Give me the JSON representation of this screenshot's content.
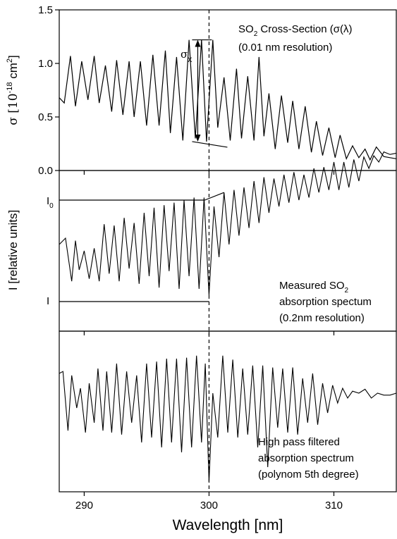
{
  "chart_data": [
    {
      "type": "line",
      "panel": "top",
      "ylabel_main": "σ [10",
      "ylabel_exp": "-18",
      "ylabel_unit": " cm",
      "ylabel_unit_exp": "2",
      "ylabel_close": "]",
      "ylim": [
        0.0,
        1.5
      ],
      "yticks": [
        "0.0",
        "0.5",
        "1.0",
        "1.5"
      ],
      "ytick_values": [
        0.0,
        0.5,
        1.0,
        1.5
      ],
      "xlim": [
        288,
        315
      ],
      "annotation_title_main": "SO",
      "annotation_title_sub": "2",
      "annotation_title_rest": " Cross-Section (σ(λ)",
      "annotation_resolution": "(0.01 nm resolution)",
      "sigma_x_symbol": "σ",
      "sigma_x_sub": "x",
      "sigma_x_wavelength": 300,
      "sigma_x_top": 1.22,
      "sigma_x_bottom": 0.27,
      "series": [
        {
          "x": [
            288.0,
            288.4,
            288.9,
            289.3,
            289.8,
            290.3,
            290.8,
            291.2,
            291.7,
            292.2,
            292.6,
            293.1,
            293.6,
            294.0,
            294.5,
            295.0,
            295.5,
            296.0,
            296.5,
            296.9,
            297.4,
            297.9,
            298.4,
            298.9,
            299.4,
            299.8,
            300.3,
            300.7,
            301.2,
            301.7,
            302.2,
            302.6,
            303.1,
            303.6,
            304.0,
            304.4,
            304.8,
            305.3,
            305.8,
            306.3,
            306.7,
            307.2,
            307.7,
            308.2,
            308.6,
            309.1,
            309.6,
            310.1,
            310.5,
            311.0,
            311.5,
            312.0,
            312.5,
            312.9,
            313.4,
            314.0,
            314.5,
            315.0
          ],
          "values": [
            0.68,
            0.63,
            1.07,
            0.6,
            1.02,
            0.66,
            1.07,
            0.63,
            0.98,
            0.55,
            1.03,
            0.52,
            1.02,
            0.5,
            1.02,
            0.42,
            1.08,
            0.42,
            1.12,
            0.35,
            1.06,
            0.28,
            1.22,
            0.3,
            1.22,
            0.27,
            1.22,
            0.4,
            0.87,
            0.28,
            0.95,
            0.3,
            0.88,
            0.28,
            1.06,
            0.32,
            0.72,
            0.2,
            0.7,
            0.26,
            0.65,
            0.2,
            0.6,
            0.17,
            0.46,
            0.14,
            0.4,
            0.12,
            0.33,
            0.11,
            0.23,
            0.12,
            0.2,
            0.1,
            0.22,
            0.13,
            0.12,
            0.11
          ]
        }
      ]
    },
    {
      "type": "line",
      "panel": "middle",
      "ylabel": "I [relative units]",
      "ytick_I0_main": "I",
      "ytick_I0_sub": "0",
      "ytick_I": "I",
      "I0_level": 0.8,
      "I_level": 0.0,
      "annotation_line1_main": "Measured SO",
      "annotation_line1_sub": "2",
      "annotation_line2": "absorption spectum",
      "annotation_line3": "(0.2nm resolution)",
      "series": [
        {
          "x": [
            288.0,
            288.5,
            289.0,
            289.3,
            289.6,
            290.0,
            290.4,
            290.8,
            291.2,
            291.6,
            292.0,
            292.4,
            292.8,
            293.2,
            293.6,
            294.0,
            294.4,
            294.8,
            295.2,
            295.6,
            296.0,
            296.4,
            296.8,
            297.2,
            297.6,
            298.0,
            298.4,
            298.8,
            299.2,
            299.6,
            300.0,
            300.4,
            300.8,
            301.2,
            301.6,
            302.0,
            302.4,
            302.8,
            303.2,
            303.6,
            304.0,
            304.4,
            304.8,
            305.2,
            305.6,
            306.0,
            306.4,
            306.8,
            307.2,
            307.6,
            308.0,
            308.4,
            308.8,
            309.2,
            309.6,
            310.0,
            310.4,
            310.8,
            311.2,
            311.6,
            312.0,
            312.4,
            312.8,
            313.2,
            313.6,
            314.0,
            314.5,
            315.0
          ],
          "values": [
            0.45,
            0.5,
            0.16,
            0.48,
            0.25,
            0.4,
            0.18,
            0.42,
            0.16,
            0.61,
            0.22,
            0.6,
            0.16,
            0.66,
            0.26,
            0.62,
            0.14,
            0.7,
            0.2,
            0.74,
            0.11,
            0.76,
            0.24,
            0.78,
            0.1,
            0.8,
            0.2,
            0.82,
            0.1,
            0.82,
            0.05,
            0.75,
            0.35,
            0.86,
            0.45,
            0.88,
            0.52,
            0.9,
            0.58,
            0.95,
            0.62,
            0.98,
            0.7,
            0.97,
            0.75,
            1.0,
            0.78,
            1.02,
            0.8,
            1.0,
            0.82,
            1.05,
            0.86,
            1.06,
            0.88,
            1.1,
            0.88,
            1.1,
            0.9,
            1.12,
            0.95,
            1.14,
            1.05,
            1.15,
            1.1,
            1.18,
            1.16,
            1.17
          ]
        }
      ]
    },
    {
      "type": "line",
      "panel": "bottom",
      "annotation_line1": "High pass filtered",
      "annotation_line2": "absorption spectrum",
      "annotation_line3": "(polynom 5th degree)",
      "series": [
        {
          "x": [
            288.0,
            288.3,
            288.7,
            289.0,
            289.4,
            289.7,
            290.1,
            290.4,
            290.8,
            291.1,
            291.5,
            291.8,
            292.2,
            292.6,
            293.0,
            293.4,
            293.8,
            294.2,
            294.6,
            295.0,
            295.4,
            295.8,
            296.2,
            296.6,
            297.0,
            297.4,
            297.8,
            298.2,
            298.6,
            299.0,
            299.4,
            299.7,
            300.0,
            300.3,
            300.7,
            301.1,
            301.5,
            301.9,
            302.3,
            302.7,
            303.1,
            303.5,
            303.9,
            304.3,
            304.7,
            305.1,
            305.5,
            305.9,
            306.3,
            306.7,
            307.1,
            307.5,
            307.9,
            308.3,
            308.7,
            309.1,
            309.5,
            309.9,
            310.3,
            310.7,
            311.1,
            311.5,
            312.0,
            312.5,
            313.0,
            313.5,
            314.0,
            314.5,
            315.0
          ],
          "values": [
            0.8,
            0.82,
            0.22,
            0.78,
            0.45,
            0.65,
            0.2,
            0.7,
            0.3,
            0.85,
            0.22,
            0.82,
            0.2,
            0.9,
            0.18,
            0.82,
            0.3,
            0.78,
            0.1,
            0.9,
            0.15,
            0.92,
            0.05,
            0.95,
            0.1,
            0.95,
            0.0,
            0.96,
            0.05,
            0.98,
            0.1,
            0.9,
            -0.3,
            0.6,
            0.15,
            0.98,
            0.2,
            0.94,
            0.15,
            0.85,
            0.18,
            0.88,
            0.05,
            0.88,
            -0.15,
            0.86,
            0.25,
            0.85,
            0.2,
            0.86,
            0.18,
            0.75,
            0.3,
            0.8,
            0.28,
            0.7,
            0.4,
            0.68,
            0.5,
            0.65,
            0.55,
            0.62,
            0.6,
            0.64,
            0.55,
            0.6,
            0.58,
            0.58,
            0.6
          ]
        }
      ]
    }
  ],
  "shared_axis": {
    "xlabel": "Wavelength [nm]",
    "xlim": [
      288,
      315
    ],
    "xticks": [
      "290",
      "300",
      "310"
    ],
    "xtick_values": [
      290,
      300,
      310
    ],
    "marker_wavelength": 300
  }
}
